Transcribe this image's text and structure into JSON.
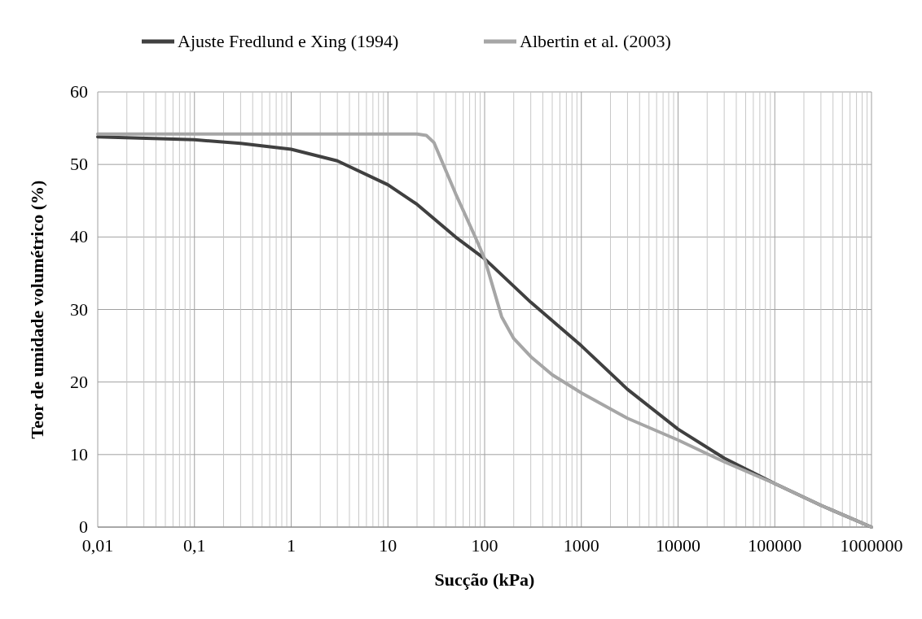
{
  "chart_data": {
    "type": "line",
    "xlabel": "Sucção (kPa)",
    "ylabel": "Teor de umidade volumétrico (%)",
    "log": "x",
    "grid": true,
    "legend": "top",
    "line_style": "solid",
    "xlim": [
      0.01,
      1000000
    ],
    "xticks": [
      {
        "value": 0.01,
        "label": "0,01"
      },
      {
        "value": 0.1,
        "label": "0,1"
      },
      1,
      10,
      100,
      1000,
      10000,
      100000,
      1000000
    ],
    "ylim": [
      0,
      60
    ],
    "yticks": [
      0,
      10,
      20,
      30,
      40,
      50,
      60
    ],
    "series": [
      {
        "name": "Ajuste Fredlund e Xing (1994)",
        "color": "#404040",
        "x": [
          0.01,
          0.1,
          0.3,
          1,
          3,
          10,
          20,
          50,
          100,
          300,
          1000,
          3000,
          10000,
          30000,
          100000,
          300000,
          1000000
        ],
        "values": [
          53.8,
          53.4,
          52.9,
          52.1,
          50.5,
          47.2,
          44.5,
          40,
          37,
          31,
          25,
          19,
          13.5,
          9.5,
          6,
          3,
          0
        ]
      },
      {
        "name": "Albertin et al. (2003)",
        "color": "#a6a6a6",
        "x": [
          0.01,
          1,
          20,
          25,
          30,
          50,
          80,
          100,
          150,
          200,
          300,
          500,
          1000,
          3000,
          10000,
          30000,
          100000,
          300000,
          1000000
        ],
        "values": [
          54.2,
          54.2,
          54.2,
          54,
          53,
          46,
          40,
          37,
          29,
          26,
          23.5,
          21,
          18.5,
          15,
          12,
          9,
          6,
          3,
          0
        ]
      }
    ]
  }
}
